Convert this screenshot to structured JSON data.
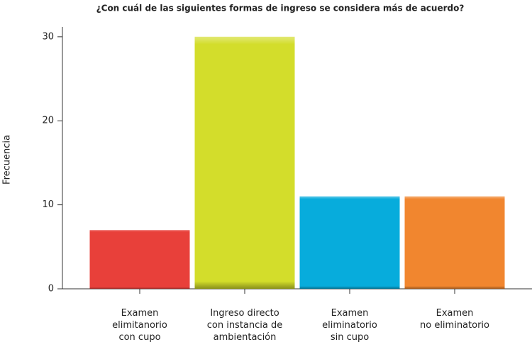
{
  "chart_data": {
    "type": "bar",
    "title": "¿Con cuál de las siguientes formas de ingreso se considera más de acuerdo?",
    "y_label": "Frecuencia",
    "categories": [
      [
        "Examen",
        "elimitanorio",
        "con cupo"
      ],
      [
        "Ingreso directo",
        "con instancia de",
        "ambientación"
      ],
      [
        "Examen",
        "eliminatorio",
        "sin cupo"
      ],
      [
        "Examen",
        "no eliminatorio"
      ]
    ],
    "values": [
      7,
      30,
      11,
      11
    ],
    "colors": [
      "#e8403a",
      "#d3dd2b",
      "#07acdc",
      "#f1862f"
    ],
    "ylim": [
      0,
      31
    ],
    "yticks": [
      0,
      10,
      20,
      30
    ],
    "grid": false
  }
}
